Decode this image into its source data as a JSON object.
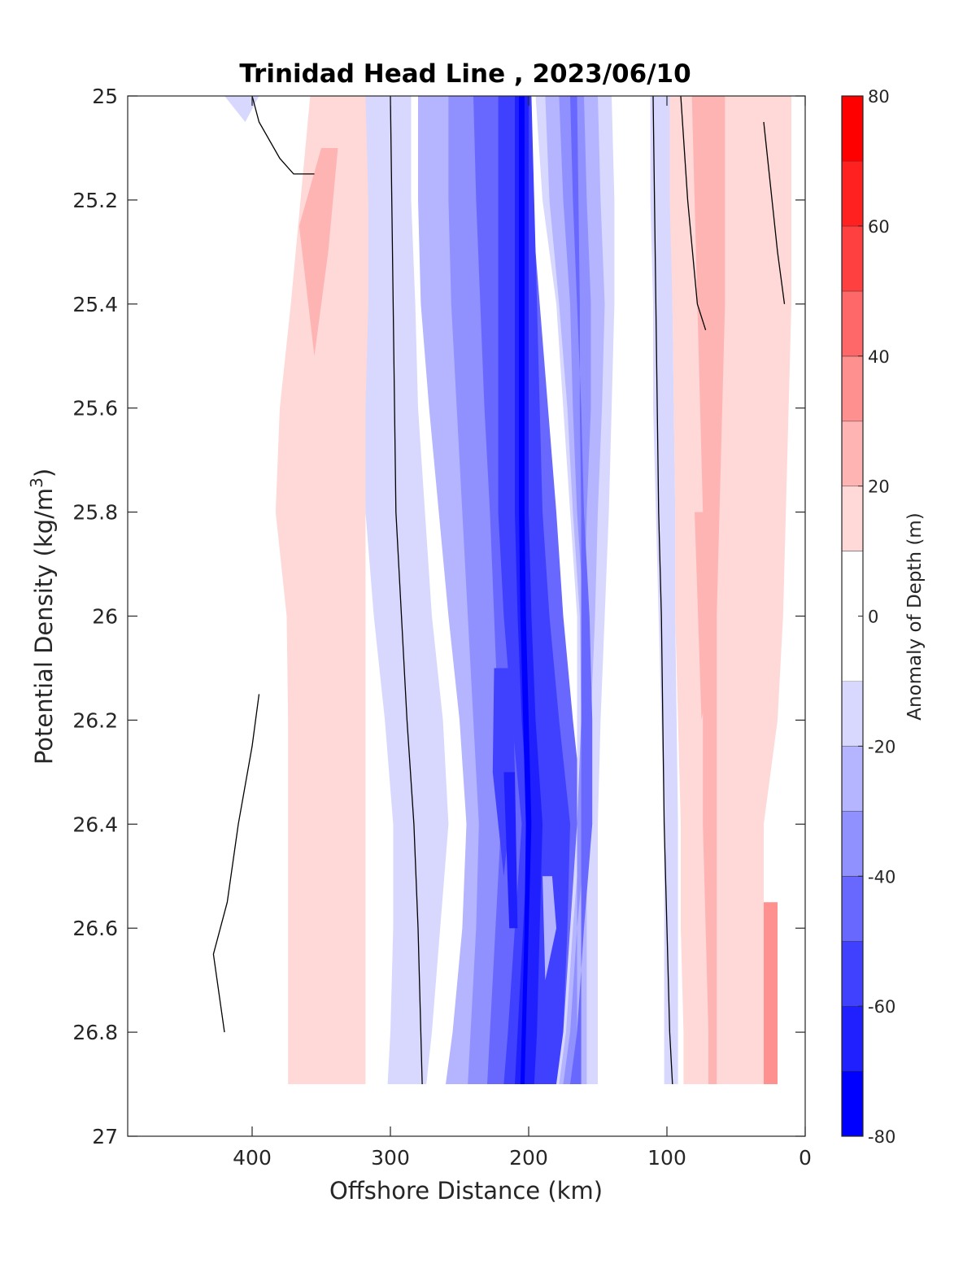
{
  "chart_data": {
    "type": "contourf",
    "title": "Trinidad Head Line , 2023/06/10",
    "xlabel": "Offshore Distance (km)",
    "ylabel": "Potential Density (kg/m",
    "ylabel_sup": "3",
    "ylabel_end": ")",
    "xlim": [
      490,
      0
    ],
    "ylim": [
      25,
      27
    ],
    "y_reversed": true,
    "x_reversed": true,
    "xticks": [
      {
        "value": 400,
        "label": "400"
      },
      {
        "value": 300,
        "label": "300"
      },
      {
        "value": 200,
        "label": "200"
      },
      {
        "value": 100,
        "label": "100"
      },
      {
        "value": 0,
        "label": "0"
      }
    ],
    "yticks": [
      {
        "value": 25,
        "label": "25"
      },
      {
        "value": 25.2,
        "label": "25.2"
      },
      {
        "value": 25.4,
        "label": "25.4"
      },
      {
        "value": 25.6,
        "label": "25.6"
      },
      {
        "value": 25.8,
        "label": "25.8"
      },
      {
        "value": 26,
        "label": "26"
      },
      {
        "value": 26.2,
        "label": "26.2"
      },
      {
        "value": 26.4,
        "label": "26.4"
      },
      {
        "value": 26.6,
        "label": "26.6"
      },
      {
        "value": 26.8,
        "label": "26.8"
      },
      {
        "value": 27,
        "label": "27"
      }
    ],
    "colorbar": {
      "label": "Anomaly of Depth (m)",
      "range": [
        -80,
        80
      ],
      "ticks": [
        {
          "value": 80,
          "label": "80"
        },
        {
          "value": 60,
          "label": "60"
        },
        {
          "value": 40,
          "label": "40"
        },
        {
          "value": 20,
          "label": "20"
        },
        {
          "value": 0,
          "label": "0"
        },
        {
          "value": -20,
          "label": "-20"
        },
        {
          "value": -40,
          "label": "-40"
        },
        {
          "value": -60,
          "label": "-60"
        },
        {
          "value": -80,
          "label": "-80"
        }
      ],
      "levels": [
        {
          "from": -80,
          "to": -70,
          "color": "#0000ff"
        },
        {
          "from": -70,
          "to": -60,
          "color": "#2020ff"
        },
        {
          "from": -60,
          "to": -50,
          "color": "#4040ff"
        },
        {
          "from": -50,
          "to": -40,
          "color": "#6868ff"
        },
        {
          "from": -40,
          "to": -30,
          "color": "#9090ff"
        },
        {
          "from": -30,
          "to": -20,
          "color": "#b4b4ff"
        },
        {
          "from": -20,
          "to": -10,
          "color": "#d8d8ff"
        },
        {
          "from": -10,
          "to": 10,
          "color": "#ffffff"
        },
        {
          "from": 10,
          "to": 20,
          "color": "#ffd8d8"
        },
        {
          "from": 20,
          "to": 30,
          "color": "#ffb4b4"
        },
        {
          "from": 30,
          "to": 40,
          "color": "#ff9090"
        },
        {
          "from": 40,
          "to": 50,
          "color": "#ff6868"
        },
        {
          "from": 50,
          "to": 60,
          "color": "#ff4040"
        },
        {
          "from": 60,
          "to": 70,
          "color": "#ff2020"
        },
        {
          "from": 70,
          "to": 80,
          "color": "#ff0000"
        }
      ]
    },
    "profile_depths": [
      25.0,
      25.2,
      25.4,
      25.6,
      25.8,
      26.0,
      26.2,
      26.4,
      26.6,
      26.8,
      26.9
    ],
    "bands": [
      {
        "color": "#d8d8ff",
        "left": [
          320,
          320,
          320,
          320,
          318,
          312,
          304,
          298,
          298,
          300,
          302
        ],
        "right": [
          285,
          285,
          282,
          280,
          275,
          270,
          262,
          258,
          264,
          270,
          274
        ]
      },
      {
        "color": "#ffd8d8",
        "left": [
          358,
          365,
          372,
          380,
          383,
          375,
          374,
          374,
          374,
          374,
          374
        ],
        "right": [
          318,
          316,
          316,
          318,
          318,
          318,
          318,
          318,
          318,
          318,
          318
        ]
      },
      {
        "color": "#b4b4ff",
        "left": [
          280,
          280,
          278,
          272,
          265,
          258,
          250,
          245,
          248,
          255,
          260
        ],
        "right": [
          255,
          255,
          252,
          250,
          245,
          240,
          232,
          228,
          232,
          238,
          242
        ]
      },
      {
        "color": "#9090ff",
        "left": [
          258,
          258,
          256,
          252,
          248,
          244,
          240,
          236,
          238,
          242,
          244
        ],
        "right": [
          232,
          225,
          215,
          210,
          205,
          200,
          195,
          190,
          192,
          195,
          197
        ]
      },
      {
        "color": "#6868ff",
        "left": [
          240,
          238,
          235,
          232,
          228,
          225,
          222,
          220,
          224,
          228,
          230
        ],
        "right": [
          205,
          198,
          192,
          186,
          180,
          175,
          168,
          160,
          160,
          162,
          162
        ]
      },
      {
        "color": "#4040ff",
        "left": [
          222,
          222,
          222,
          222,
          222,
          218,
          212,
          205,
          210,
          215,
          218
        ],
        "right": [
          198,
          196,
          194,
          192,
          190,
          185,
          178,
          170,
          172,
          175,
          178
        ]
      },
      {
        "color": "#2020ff",
        "left": [
          210,
          210,
          210,
          210,
          210,
          208,
          205,
          200,
          204,
          208,
          210
        ],
        "right": [
          200,
          200,
          200,
          200,
          200,
          198,
          195,
          190,
          192,
          194,
          196
        ]
      },
      {
        "color": "#0000ff",
        "left": [
          207,
          207,
          207,
          207,
          207,
          206,
          204,
          202,
          203,
          205,
          206
        ],
        "right": [
          203,
          203,
          203,
          203,
          203,
          202,
          200,
          198,
          200,
          202,
          203
        ]
      },
      {
        "color": "#d8d8ff",
        "left": [
          195,
          190,
          180,
          175,
          170,
          165,
          165,
          165,
          170,
          175,
          180
        ],
        "right": [
          140,
          138,
          138,
          140,
          142,
          145,
          148,
          150,
          150,
          150,
          150
        ]
      },
      {
        "color": "#b4b4ff",
        "left": [
          188,
          185,
          178,
          172,
          168,
          163,
          162,
          162,
          168,
          173,
          178
        ],
        "right": [
          150,
          148,
          145,
          147,
          150,
          152,
          155,
          158,
          158,
          158,
          158
        ]
      },
      {
        "color": "#9090ff",
        "left": [
          178,
          175,
          170,
          168,
          165,
          160,
          158,
          158,
          165,
          170,
          175
        ],
        "right": [
          160,
          158,
          155,
          155,
          158,
          160,
          162,
          165,
          165,
          165,
          165
        ]
      },
      {
        "color": "#6868ff",
        "left": [
          170,
          168,
          165,
          162,
          160,
          156,
          154,
          154,
          160,
          165,
          170
        ],
        "right": [
          165,
          164,
          163,
          163,
          162,
          162,
          162,
          162,
          162,
          162,
          162
        ]
      },
      {
        "color": "#d8d8ff",
        "left": [
          112,
          112,
          110,
          110,
          108,
          106,
          104,
          102,
          102,
          102,
          102
        ],
        "right": [
          96,
          96,
          96,
          95,
          94,
          94,
          93,
          92,
          92,
          92,
          92
        ]
      },
      {
        "color": "#ffd8d8",
        "left": [
          98,
          98,
          96,
          95,
          94,
          94,
          92,
          90,
          90,
          88,
          88
        ],
        "right": [
          10,
          10,
          10,
          12,
          14,
          16,
          20,
          30,
          30,
          30,
          30
        ]
      },
      {
        "color": "#ffb4b4",
        "left": [
          82,
          80,
          78,
          76,
          74,
          74,
          74,
          74,
          72,
          70,
          70
        ],
        "right": [
          58,
          58,
          58,
          60,
          62,
          64,
          64,
          64,
          64,
          64,
          64
        ]
      }
    ],
    "blobs": [
      {
        "color": "#ffb4b4",
        "points": [
          [
            350,
            25.1
          ],
          [
            366,
            25.25
          ],
          [
            355,
            25.5
          ],
          [
            345,
            25.3
          ],
          [
            338,
            25.1
          ]
        ]
      },
      {
        "color": "#ffd8d8",
        "points": [
          [
            365,
            26.7
          ],
          [
            355,
            26.65
          ],
          [
            345,
            26.6
          ],
          [
            340,
            26.7
          ],
          [
            350,
            26.78
          ],
          [
            360,
            26.78
          ]
        ]
      },
      {
        "color": "#d8d8ff",
        "points": [
          [
            420,
            25.0
          ],
          [
            405,
            25.05
          ],
          [
            395,
            25.0
          ]
        ]
      },
      {
        "color": "#4040ff",
        "points": [
          [
            225,
            26.1
          ],
          [
            212,
            26.1
          ],
          [
            210,
            26.3
          ],
          [
            218,
            26.5
          ],
          [
            226,
            26.3
          ]
        ]
      },
      {
        "color": "#2020ff",
        "points": [
          [
            218,
            26.3
          ],
          [
            210,
            26.3
          ],
          [
            208,
            26.6
          ],
          [
            214,
            26.6
          ]
        ]
      },
      {
        "color": "#b4b4ff",
        "points": [
          [
            190,
            26.5
          ],
          [
            183,
            26.5
          ],
          [
            180,
            26.6
          ],
          [
            188,
            26.7
          ]
        ]
      },
      {
        "color": "#ffb4b4",
        "points": [
          [
            80,
            25.8
          ],
          [
            72,
            25.8
          ],
          [
            68,
            26.1
          ],
          [
            75,
            26.2
          ]
        ]
      },
      {
        "color": "#ff9090",
        "points": [
          [
            30,
            26.55
          ],
          [
            20,
            26.55
          ],
          [
            20,
            26.9
          ],
          [
            30,
            26.9
          ]
        ]
      }
    ],
    "contours": [
      [
        [
          300,
          25.0
        ],
        [
          298,
          25.4
        ],
        [
          296,
          25.8
        ],
        [
          292,
          26.0
        ],
        [
          288,
          26.2
        ],
        [
          283,
          26.4
        ],
        [
          280,
          26.6
        ],
        [
          278,
          26.8
        ],
        [
          277,
          26.9
        ]
      ],
      [
        [
          110,
          25.0
        ],
        [
          108,
          25.4
        ],
        [
          106,
          25.8
        ],
        [
          104,
          26.0
        ],
        [
          103,
          26.2
        ],
        [
          102,
          26.4
        ],
        [
          100,
          26.6
        ],
        [
          98,
          26.8
        ],
        [
          96,
          26.9
        ]
      ],
      [
        [
          400,
          25.0
        ],
        [
          395,
          25.05
        ],
        [
          380,
          25.12
        ],
        [
          370,
          25.15
        ],
        [
          355,
          25.15
        ]
      ],
      [
        [
          395,
          26.15
        ],
        [
          400,
          26.25
        ],
        [
          410,
          26.4
        ],
        [
          418,
          26.55
        ],
        [
          428,
          26.65
        ],
        [
          420,
          26.8
        ]
      ],
      [
        [
          90,
          25.0
        ],
        [
          85,
          25.2
        ],
        [
          78,
          25.4
        ],
        [
          72,
          25.45
        ]
      ],
      [
        [
          30,
          25.05
        ],
        [
          20,
          25.3
        ],
        [
          15,
          25.4
        ]
      ]
    ]
  }
}
